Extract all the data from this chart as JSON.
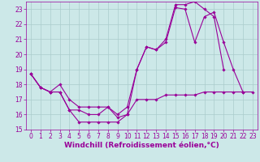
{
  "background_color": "#cce8e8",
  "grid_color": "#aacccc",
  "line_color": "#990099",
  "marker_color": "#990099",
  "xlim": [
    -0.5,
    23.5
  ],
  "ylim": [
    15,
    23.5
  ],
  "yticks": [
    15,
    16,
    17,
    18,
    19,
    20,
    21,
    22,
    23
  ],
  "xticks": [
    0,
    1,
    2,
    3,
    4,
    5,
    6,
    7,
    8,
    9,
    10,
    11,
    12,
    13,
    14,
    15,
    16,
    17,
    18,
    19,
    20,
    21,
    22,
    23
  ],
  "xlabel": "Windchill (Refroidissement éolien,°C)",
  "series": [
    {
      "x": [
        0,
        1,
        2,
        3,
        4,
        5,
        6,
        7,
        8,
        9,
        10,
        11,
        12,
        13,
        14,
        15,
        16,
        17,
        18,
        19,
        20,
        21,
        22
      ],
      "y": [
        18.7,
        17.8,
        17.5,
        17.5,
        16.3,
        15.5,
        15.5,
        15.5,
        15.5,
        15.5,
        16.0,
        19.0,
        20.5,
        20.3,
        20.8,
        23.1,
        23.0,
        20.8,
        22.5,
        22.8,
        20.8,
        19.0,
        17.5
      ]
    },
    {
      "x": [
        0,
        1,
        2,
        3,
        4,
        5,
        6,
        7,
        8,
        9,
        10,
        11,
        12,
        13,
        14,
        15,
        16,
        17,
        18,
        19,
        20,
        21,
        22,
        23
      ],
      "y": [
        18.7,
        17.8,
        17.5,
        18.0,
        17.0,
        16.5,
        16.5,
        16.5,
        16.5,
        15.8,
        16.0,
        17.0,
        17.0,
        17.0,
        17.3,
        17.3,
        17.3,
        17.3,
        17.5,
        17.5,
        17.5,
        17.5,
        17.5,
        17.5
      ]
    },
    {
      "x": [
        0,
        1,
        2,
        3,
        4,
        5,
        6,
        7,
        8,
        9,
        10,
        11,
        12,
        13,
        14,
        15,
        16,
        17,
        18,
        19,
        20
      ],
      "y": [
        18.7,
        17.8,
        17.5,
        17.5,
        16.3,
        16.3,
        16.0,
        16.0,
        16.5,
        16.0,
        16.5,
        19.0,
        20.5,
        20.3,
        21.0,
        23.3,
        23.3,
        23.5,
        23.0,
        22.5,
        19.0
      ]
    }
  ],
  "tick_fontsize": 5.5,
  "label_fontsize": 6.5
}
